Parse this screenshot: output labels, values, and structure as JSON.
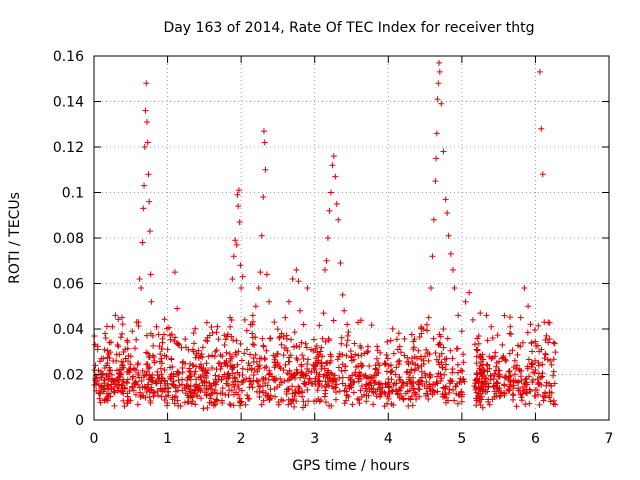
{
  "chart_data": {
    "type": "scatter",
    "title": "Day 163 of 2014, Rate Of TEC Index for receiver thtg",
    "xlabel": "GPS time / hours",
    "ylabel": "ROTI / TECUs",
    "xlim": [
      0,
      7
    ],
    "ylim": [
      0,
      0.16
    ],
    "x_ticks": [
      0,
      1,
      2,
      3,
      4,
      5,
      6,
      7
    ],
    "y_ticks": [
      0,
      0.02,
      0.04,
      0.06,
      0.08,
      0.1,
      0.12,
      0.14,
      0.16
    ],
    "x_tick_labels": [
      "0",
      "1",
      "2",
      "3",
      "4",
      "5",
      "6",
      "7"
    ],
    "y_tick_labels": [
      "0",
      "0.02",
      "0.04",
      "0.06",
      "0.08",
      "0.1",
      "0.12",
      "0.14",
      "0.16"
    ],
    "grid": true,
    "marker": "plus",
    "color": "#e00000",
    "series": [
      {
        "name": "ROTI",
        "x": [
          0.02,
          0.04,
          0.05,
          0.08,
          0.1,
          0.12,
          0.15,
          0.18,
          0.2,
          0.22,
          0.25,
          0.28,
          0.3,
          0.32,
          0.35,
          0.38,
          0.4,
          0.42,
          0.45,
          0.48,
          0.5,
          0.52,
          0.55,
          0.58,
          0.6,
          0.62,
          0.64,
          0.66,
          0.67,
          0.68,
          0.69,
          0.7,
          0.71,
          0.72,
          0.73,
          0.74,
          0.75,
          0.76,
          0.77,
          0.78,
          0.8,
          0.82,
          0.85,
          0.88,
          0.9,
          0.93,
          0.96,
          1.0,
          1.05,
          1.1,
          1.13,
          1.15,
          1.2,
          1.25,
          1.3,
          1.35,
          1.4,
          1.45,
          1.5,
          1.55,
          1.6,
          1.65,
          1.7,
          1.75,
          1.8,
          1.85,
          1.88,
          1.9,
          1.92,
          1.94,
          1.95,
          1.96,
          1.97,
          1.98,
          1.99,
          2.0,
          2.02,
          2.05,
          2.08,
          2.1,
          2.15,
          2.2,
          2.24,
          2.26,
          2.28,
          2.3,
          2.31,
          2.32,
          2.33,
          2.35,
          2.38,
          2.4,
          2.45,
          2.5,
          2.55,
          2.6,
          2.65,
          2.7,
          2.75,
          2.78,
          2.8,
          2.82,
          2.85,
          2.9,
          2.95,
          3.0,
          3.05,
          3.1,
          3.12,
          3.14,
          3.16,
          3.18,
          3.2,
          3.22,
          3.24,
          3.26,
          3.28,
          3.3,
          3.32,
          3.35,
          3.38,
          3.4,
          3.45,
          3.5,
          3.55,
          3.6,
          3.65,
          3.7,
          3.75,
          3.8,
          3.85,
          3.9,
          3.95,
          4.0,
          4.05,
          4.1,
          4.15,
          4.2,
          4.25,
          4.3,
          4.35,
          4.4,
          4.45,
          4.5,
          4.55,
          4.58,
          4.6,
          4.62,
          4.64,
          4.65,
          4.66,
          4.67,
          4.68,
          4.69,
          4.7,
          4.72,
          4.75,
          4.78,
          4.8,
          4.82,
          4.85,
          4.88,
          4.9,
          4.95,
          5.0,
          5.05,
          5.1,
          5.15,
          5.2,
          5.25,
          5.3,
          5.35,
          5.4,
          5.45,
          5.5,
          5.55,
          5.6,
          5.65,
          5.7,
          5.75,
          5.8,
          5.85,
          5.9,
          5.95,
          6.0,
          6.03,
          6.06,
          6.08,
          6.1,
          6.12,
          6.15,
          6.2,
          6.25
        ],
        "y": [
          0.024,
          0.018,
          0.031,
          0.012,
          0.027,
          0.02,
          0.038,
          0.015,
          0.029,
          0.022,
          0.041,
          0.017,
          0.026,
          0.033,
          0.019,
          0.045,
          0.023,
          0.014,
          0.035,
          0.021,
          0.028,
          0.039,
          0.016,
          0.043,
          0.025,
          0.062,
          0.058,
          0.078,
          0.093,
          0.103,
          0.12,
          0.136,
          0.148,
          0.131,
          0.122,
          0.108,
          0.096,
          0.083,
          0.064,
          0.052,
          0.037,
          0.026,
          0.041,
          0.018,
          0.029,
          0.034,
          0.022,
          0.016,
          0.027,
          0.065,
          0.049,
          0.021,
          0.013,
          0.032,
          0.019,
          0.024,
          0.011,
          0.028,
          0.017,
          0.022,
          0.015,
          0.03,
          0.019,
          0.014,
          0.026,
          0.045,
          0.062,
          0.072,
          0.079,
          0.077,
          0.099,
          0.094,
          0.101,
          0.087,
          0.068,
          0.058,
          0.063,
          0.044,
          0.031,
          0.025,
          0.038,
          0.05,
          0.058,
          0.065,
          0.081,
          0.098,
          0.127,
          0.122,
          0.11,
          0.064,
          0.052,
          0.036,
          0.043,
          0.029,
          0.038,
          0.045,
          0.052,
          0.062,
          0.066,
          0.061,
          0.048,
          0.034,
          0.042,
          0.058,
          0.031,
          0.022,
          0.019,
          0.028,
          0.047,
          0.066,
          0.07,
          0.08,
          0.092,
          0.1,
          0.112,
          0.116,
          0.107,
          0.095,
          0.088,
          0.069,
          0.055,
          0.048,
          0.037,
          0.028,
          0.021,
          0.017,
          0.024,
          0.015,
          0.019,
          0.012,
          0.022,
          0.016,
          0.025,
          0.018,
          0.013,
          0.02,
          0.026,
          0.015,
          0.021,
          0.017,
          0.032,
          0.024,
          0.038,
          0.028,
          0.045,
          0.058,
          0.072,
          0.088,
          0.105,
          0.115,
          0.126,
          0.141,
          0.148,
          0.157,
          0.153,
          0.139,
          0.118,
          0.097,
          0.091,
          0.081,
          0.073,
          0.066,
          0.058,
          0.046,
          0.039,
          0.052,
          0.056,
          0.044,
          0.031,
          0.047,
          0.022,
          0.035,
          0.041,
          0.028,
          0.019,
          0.033,
          0.026,
          0.038,
          0.017,
          0.024,
          0.045,
          0.058,
          0.05,
          0.034,
          0.022,
          0.018,
          0.153,
          0.128,
          0.108,
          0.043,
          0.037,
          0.026,
          0.034
        ],
        "dense_band_y_range": [
          0.005,
          0.04
        ]
      }
    ]
  }
}
